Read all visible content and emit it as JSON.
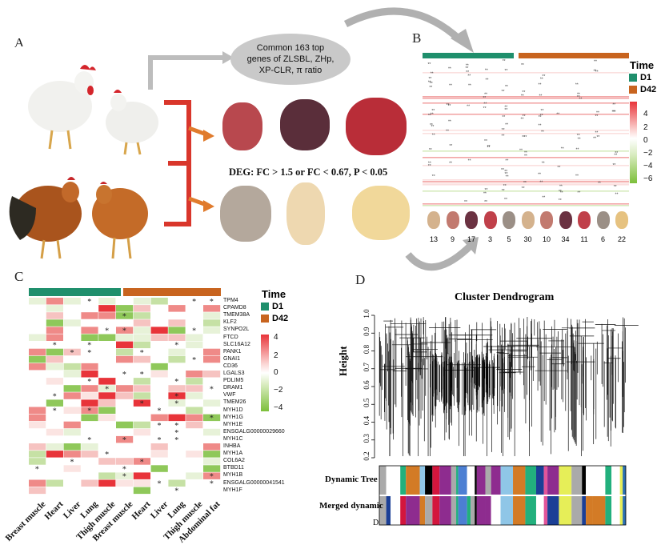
{
  "panels": {
    "a": "A",
    "b": "B",
    "c": "C",
    "d": "D",
    "d_note": "D"
  },
  "panel_a": {
    "ellipse_text": [
      "Common 163 top",
      "genes of ZLSBL, ZHp,",
      "XP-CLR, π ratio"
    ],
    "deg_text": "DEG: FC > 1.5 or FC < 0.67, P < 0.05"
  },
  "panel_b": {
    "legend_title": "Time",
    "legend_d1": "D1",
    "legend_d42": "D42",
    "colorbar_ticks": [
      "4",
      "2",
      "0",
      "−2",
      "−4",
      "−6"
    ],
    "counts": [
      "13",
      "9",
      "17",
      "3",
      "5",
      "30",
      "10",
      "34",
      "11",
      "6",
      "22"
    ]
  },
  "panel_c": {
    "legend_title": "Time",
    "legend_d1": "D1",
    "legend_d42": "D42",
    "colorbar_ticks": [
      "4",
      "2",
      "0",
      "−2",
      "−4"
    ],
    "genes": [
      "TPM4",
      "CPAMD8",
      "TMEM38A",
      "KLF2",
      "SYNPO2L",
      "FTCD",
      "SLC16A12",
      "PANK1",
      "GNAI1",
      "CD36",
      "LGALS3",
      "PDLIM5",
      "DRAM1",
      "VWF",
      "TMEM26",
      "MYH1D",
      "MYH1G",
      "MYH1E",
      "ENSGALG00000029660",
      "MYH1C",
      "INHBA",
      "MYH1A",
      "COL6A2",
      "BTBD11",
      "MYH1B",
      "ENSGALG00000041541",
      "MYH1F"
    ],
    "tissues": [
      "Breast muscle",
      "Heart",
      "Liver",
      "Lung",
      "Thigh muscle",
      "Breast muscle",
      "Heart",
      "Liver",
      "Lung",
      "Thigh muscle",
      "Abdominal fat"
    ]
  },
  "panel_d": {
    "title": "Cluster Dendrogram",
    "ylabel": "Height",
    "yticks": [
      "1.0",
      "0.9",
      "0.8",
      "0.7",
      "0.6",
      "0.5",
      "0.4",
      "0.3",
      "0.2"
    ],
    "row1": "Dynamic Tree",
    "row2": "Merged dynamic"
  },
  "colors": {
    "d1": "#1f8f6c",
    "d42": "#c8641f",
    "up": "#e8343a",
    "down": "#7cbf3a"
  }
}
